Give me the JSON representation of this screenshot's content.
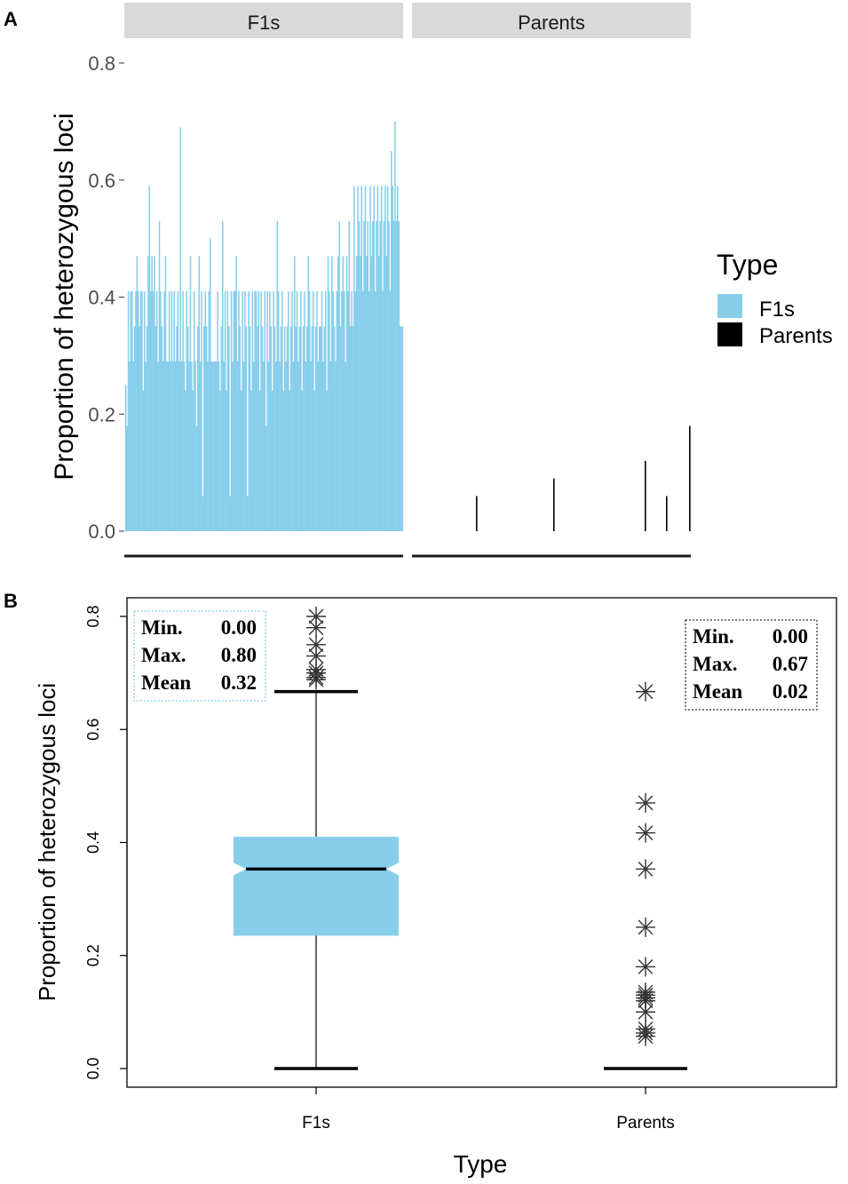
{
  "colors": {
    "f1": "#87ceeb",
    "parents": "#000000",
    "strip": "#d9d9d9",
    "tick_text": "#4d4d4d"
  },
  "chart_data": [
    {
      "panel_label": "A",
      "type": "bar",
      "ylabel": "Proportion of  heterozygous loci",
      "ylim": [
        0,
        0.8
      ],
      "yticks": [
        "0.0",
        "0.2",
        "0.4",
        "0.6",
        "0.8"
      ],
      "ytick_values": [
        0,
        0.2,
        0.4,
        0.6,
        0.8
      ],
      "legend": {
        "title": "Type",
        "entries": [
          "F1s",
          "Parents"
        ],
        "position": "right"
      },
      "facets": [
        {
          "name": "F1s",
          "color_key": "f1",
          "values": [
            0.25,
            0.18,
            0.41,
            0.29,
            0.41,
            0.41,
            0.29,
            0.35,
            0.41,
            0.47,
            0.41,
            0.35,
            0.41,
            0.41,
            0.24,
            0.41,
            0.29,
            0.35,
            0.47,
            0.59,
            0.41,
            0.47,
            0.41,
            0.47,
            0.35,
            0.41,
            0.29,
            0.53,
            0.41,
            0.35,
            0.29,
            0.41,
            0.47,
            0.29,
            0.29,
            0.41,
            0.29,
            0.41,
            0.29,
            0.41,
            0.29,
            0.35,
            0.41,
            0.29,
            0.69,
            0.29,
            0.41,
            0.29,
            0.24,
            0.41,
            0.35,
            0.29,
            0.47,
            0.29,
            0.24,
            0.41,
            0.29,
            0.18,
            0.35,
            0.47,
            0.29,
            0.41,
            0.06,
            0.35,
            0.41,
            0.35,
            0.29,
            0.41,
            0.5,
            0.29,
            0.29,
            0.29,
            0.29,
            0.29,
            0.41,
            0.29,
            0.24,
            0.35,
            0.53,
            0.29,
            0.41,
            0.24,
            0.41,
            0.35,
            0.06,
            0.41,
            0.29,
            0.41,
            0.41,
            0.47,
            0.29,
            0.41,
            0.35,
            0.24,
            0.41,
            0.29,
            0.41,
            0.35,
            0.06,
            0.41,
            0.35,
            0.24,
            0.41,
            0.29,
            0.41,
            0.41,
            0.35,
            0.41,
            0.24,
            0.41,
            0.35,
            0.29,
            0.41,
            0.18,
            0.41,
            0.29,
            0.41,
            0.35,
            0.24,
            0.41,
            0.35,
            0.29,
            0.53,
            0.41,
            0.29,
            0.35,
            0.41,
            0.24,
            0.35,
            0.29,
            0.35,
            0.41,
            0.24,
            0.35,
            0.41,
            0.29,
            0.47,
            0.35,
            0.41,
            0.29,
            0.35,
            0.41,
            0.24,
            0.35,
            0.41,
            0.29,
            0.35,
            0.47,
            0.41,
            0.29,
            0.35,
            0.41,
            0.24,
            0.35,
            0.41,
            0.29,
            0.35,
            0.35,
            0.41,
            0.29,
            0.35,
            0.41,
            0.24,
            0.47,
            0.41,
            0.29,
            0.47,
            0.41,
            0.35,
            0.29,
            0.41,
            0.47,
            0.53,
            0.35,
            0.41,
            0.47,
            0.41,
            0.29,
            0.47,
            0.41,
            0.53,
            0.35,
            0.41,
            0.35,
            0.59,
            0.41,
            0.47,
            0.59,
            0.53,
            0.47,
            0.59,
            0.41,
            0.53,
            0.59,
            0.47,
            0.53,
            0.41,
            0.59,
            0.47,
            0.53,
            0.59,
            0.41,
            0.53,
            0.59,
            0.47,
            0.53,
            0.59,
            0.41,
            0.53,
            0.59,
            0.47,
            0.59,
            0.53,
            0.41,
            0.65,
            0.59,
            0.53,
            0.7,
            0.53,
            0.59,
            0.53,
            0.35,
            0.35,
            0.35
          ]
        },
        {
          "name": "Parents",
          "color_key": "parents",
          "values": [
            0.06,
            0.09,
            0.12,
            0.06,
            0.18
          ]
        }
      ]
    },
    {
      "panel_label": "B",
      "type": "boxplot",
      "xlabel": "Type",
      "ylabel": "Proportion of heterozygous loci",
      "ylim": [
        0,
        0.8
      ],
      "yticks": [
        "0.0",
        "0.2",
        "0.4",
        "0.6",
        "0.8"
      ],
      "ytick_values": [
        0,
        0.2,
        0.4,
        0.6,
        0.8
      ],
      "categories": [
        "F1s",
        "Parents"
      ],
      "boxes": [
        {
          "name": "F1s",
          "q1": 0.235,
          "median": 0.353,
          "q3": 0.41,
          "whisker_low": 0.0,
          "whisker_high": 0.667,
          "notch_low": 0.342,
          "notch_high": 0.364,
          "outliers": [
            0.688,
            0.692,
            0.7,
            0.706,
            0.73,
            0.75,
            0.78,
            0.8
          ],
          "stats": {
            "min_label": "Min.",
            "min": "0.00",
            "max_label": "Max.",
            "max": "0.80",
            "mean_label": "Mean",
            "mean": "0.32"
          }
        },
        {
          "name": "Parents",
          "q1": 0.0,
          "median": 0.0,
          "q3": 0.0,
          "whisker_low": 0.0,
          "whisker_high": 0.0,
          "outliers": [
            0.057,
            0.063,
            0.07,
            0.1,
            0.12,
            0.125,
            0.13,
            0.135,
            0.18,
            0.25,
            0.353,
            0.417,
            0.47,
            0.667
          ],
          "stats": {
            "min_label": "Min.",
            "min": "0.00",
            "max_label": "Max.",
            "max": "0.67",
            "mean_label": "Mean",
            "mean": "0.02"
          }
        }
      ]
    }
  ]
}
